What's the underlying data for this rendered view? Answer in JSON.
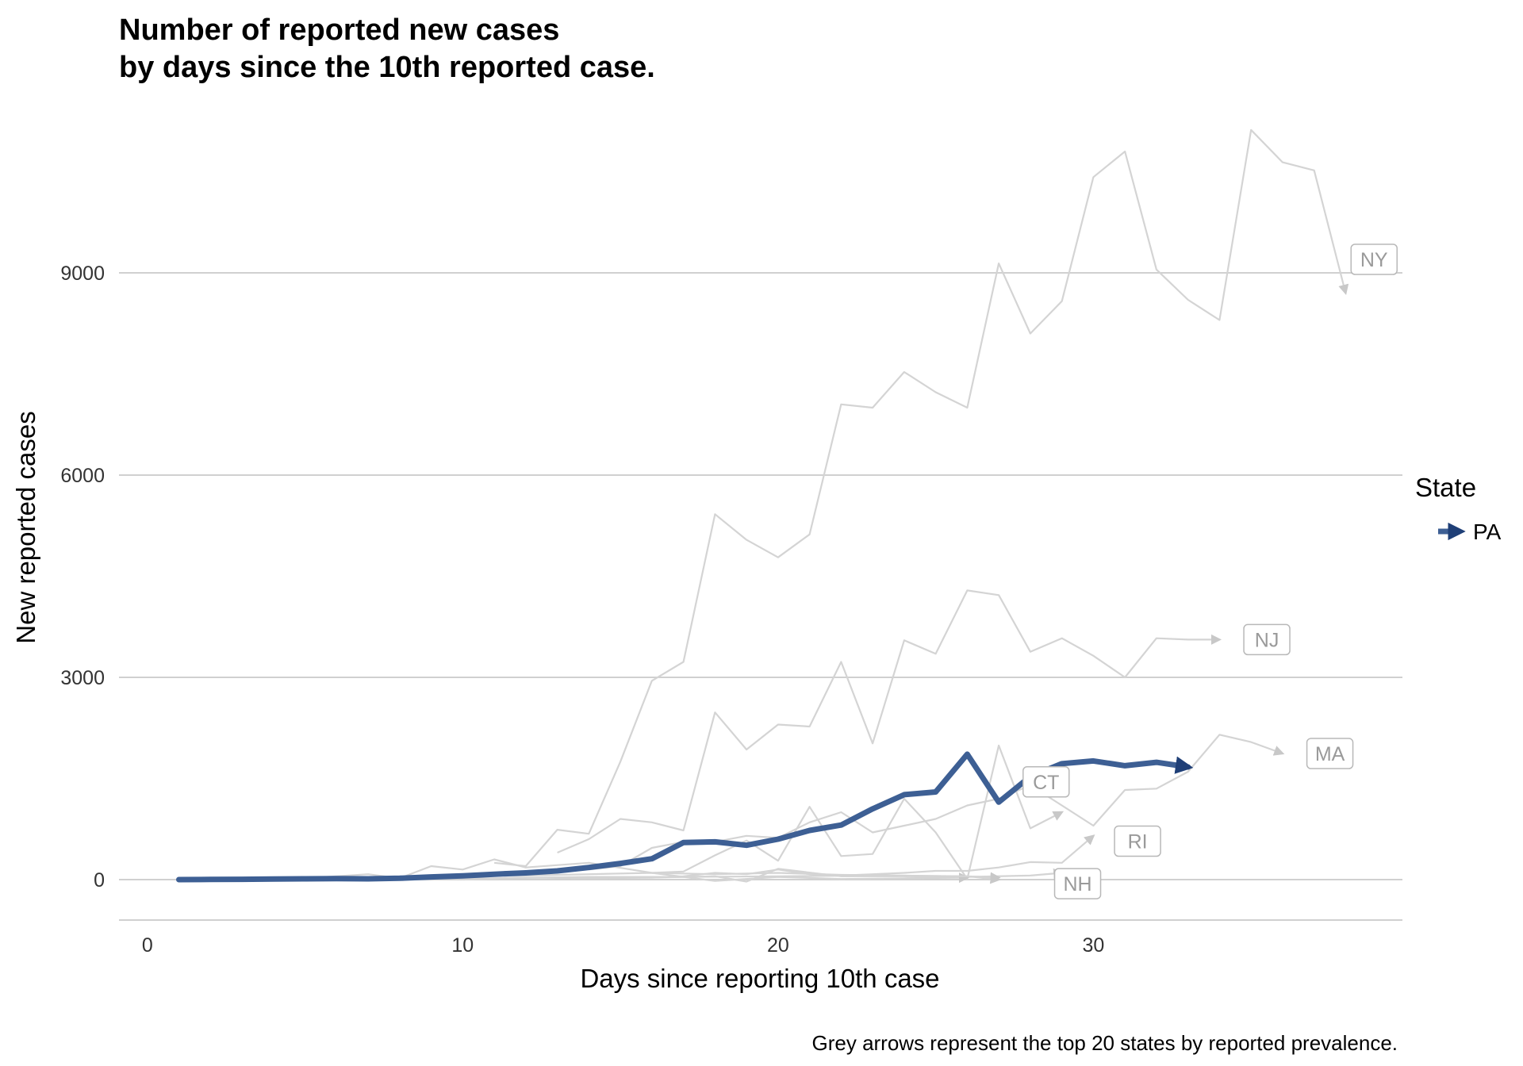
{
  "title_line1": "Number of reported new cases",
  "title_line2": "by days since the 10th reported case.",
  "caption": "Grey arrows represent the top 20 states by reported prevalence.",
  "colors": {
    "highlight": "#3d5f94",
    "highlight_head": "#1f3f77",
    "grey_line": "#d4d4d4",
    "grey_arrow": "#c8c8c8",
    "grid": "#d0d0d0",
    "label_text": "#9a9a9a"
  },
  "legend": {
    "title": "State",
    "items": [
      {
        "label": "PA",
        "color": "#3d5f94"
      }
    ]
  },
  "chart_data": {
    "type": "line",
    "xlabel": "Days since reporting 10th case",
    "ylabel": "New reported cases",
    "xlim": [
      -0.9,
      39.8
    ],
    "ylim": [
      -600,
      11400
    ],
    "xticks": [
      0,
      10,
      20,
      30
    ],
    "yticks": [
      0,
      3000,
      6000,
      9000
    ],
    "xtick_labels": [
      "0",
      "10",
      "20",
      "30"
    ],
    "ytick_labels": [
      "0",
      "3000",
      "6000",
      "9000"
    ],
    "grid": "horizontal",
    "legend_position": "right",
    "highlighted_series": {
      "name": "PA",
      "x": [
        1,
        2,
        3,
        4,
        5,
        6,
        7,
        8,
        9,
        10,
        11,
        12,
        13,
        14,
        15,
        16,
        17,
        18,
        19,
        20,
        21,
        22,
        23,
        24,
        25,
        26,
        27,
        28,
        29,
        30,
        31,
        32,
        33
      ],
      "values": [
        0,
        2,
        5,
        10,
        12,
        15,
        12,
        20,
        40,
        55,
        80,
        100,
        130,
        180,
        240,
        310,
        550,
        560,
        510,
        600,
        730,
        810,
        1050,
        1260,
        1300,
        1860,
        1150,
        1530,
        1720,
        1760,
        1690,
        1740,
        1670
      ]
    },
    "background_series": [
      {
        "name": "NY",
        "x": [
          11,
          12,
          13,
          14,
          15,
          16,
          17,
          18,
          19,
          20,
          21,
          22,
          23,
          24,
          25,
          26,
          27,
          28,
          29,
          30,
          31,
          32,
          33,
          34,
          35,
          36,
          37,
          38
        ],
        "values": [
          250,
          200,
          740,
          680,
          1750,
          2950,
          3230,
          5420,
          5040,
          4780,
          5120,
          7050,
          7000,
          7530,
          7230,
          7000,
          9140,
          8100,
          8580,
          10420,
          10800,
          9050,
          8600,
          8300,
          11120,
          10640,
          10520,
          8700
        ]
      },
      {
        "name": "NJ",
        "x": [
          13,
          14,
          15,
          16,
          17,
          18,
          19,
          20,
          21,
          22,
          23,
          24,
          25,
          26,
          27,
          28,
          29,
          30,
          31,
          32,
          33,
          34
        ],
        "values": [
          400,
          600,
          900,
          850,
          730,
          2480,
          1930,
          2300,
          2270,
          3230,
          2020,
          3550,
          3350,
          4290,
          4220,
          3380,
          3580,
          3320,
          3000,
          3580,
          3560,
          3560
        ]
      },
      {
        "name": "MA",
        "x": [
          14,
          15,
          16,
          17,
          18,
          19,
          20,
          21,
          22,
          23,
          24,
          25,
          26,
          27,
          28,
          29,
          30,
          31,
          32,
          33,
          34,
          35,
          36
        ],
        "values": [
          150,
          200,
          470,
          560,
          560,
          650,
          620,
          850,
          1000,
          700,
          800,
          900,
          1100,
          1200,
          1400,
          1100,
          800,
          1330,
          1350,
          1600,
          2150,
          2040,
          1870
        ]
      },
      {
        "name": "CT",
        "x": [
          16,
          17,
          18,
          19,
          20,
          21,
          22,
          23,
          24,
          25,
          26,
          27,
          28,
          29
        ],
        "values": [
          100,
          120,
          360,
          580,
          280,
          1080,
          350,
          380,
          1200,
          700,
          10,
          1990,
          760,
          1000
        ]
      },
      {
        "name": "RI",
        "x": [
          14,
          15,
          16,
          17,
          18,
          19,
          20,
          21,
          22,
          23,
          24,
          25,
          26,
          27,
          28,
          29,
          30
        ],
        "values": [
          20,
          30,
          30,
          50,
          100,
          80,
          150,
          80,
          60,
          80,
          100,
          130,
          130,
          180,
          260,
          250,
          650
        ]
      },
      {
        "name": "NH",
        "x": [
          10,
          12,
          14,
          16,
          18,
          19,
          20,
          22,
          24,
          26,
          28,
          29
        ],
        "values": [
          0,
          30,
          20,
          30,
          50,
          -30,
          160,
          50,
          50,
          40,
          60,
          100
        ]
      },
      {
        "name": "",
        "x": [
          1,
          5,
          7,
          8,
          9,
          10,
          11,
          12,
          14,
          16,
          18,
          20,
          22,
          24,
          26
        ],
        "values": [
          0,
          20,
          80,
          20,
          200,
          150,
          300,
          180,
          250,
          100,
          -20,
          40,
          10,
          20,
          30
        ]
      },
      {
        "name": "",
        "x": [
          1,
          4,
          6,
          8,
          10,
          12,
          14,
          16,
          18,
          20,
          22,
          24,
          26,
          27
        ],
        "values": [
          0,
          10,
          20,
          30,
          50,
          60,
          80,
          100,
          80,
          100,
          70,
          60,
          50,
          0
        ]
      },
      {
        "name": "",
        "x": [
          1,
          5,
          8,
          11,
          14,
          17,
          20,
          23,
          26,
          27
        ],
        "values": [
          0,
          5,
          10,
          20,
          40,
          40,
          50,
          60,
          50,
          30
        ]
      }
    ],
    "state_labels": [
      "NY",
      "NJ",
      "MA",
      "CT",
      "RI",
      "NH"
    ]
  }
}
